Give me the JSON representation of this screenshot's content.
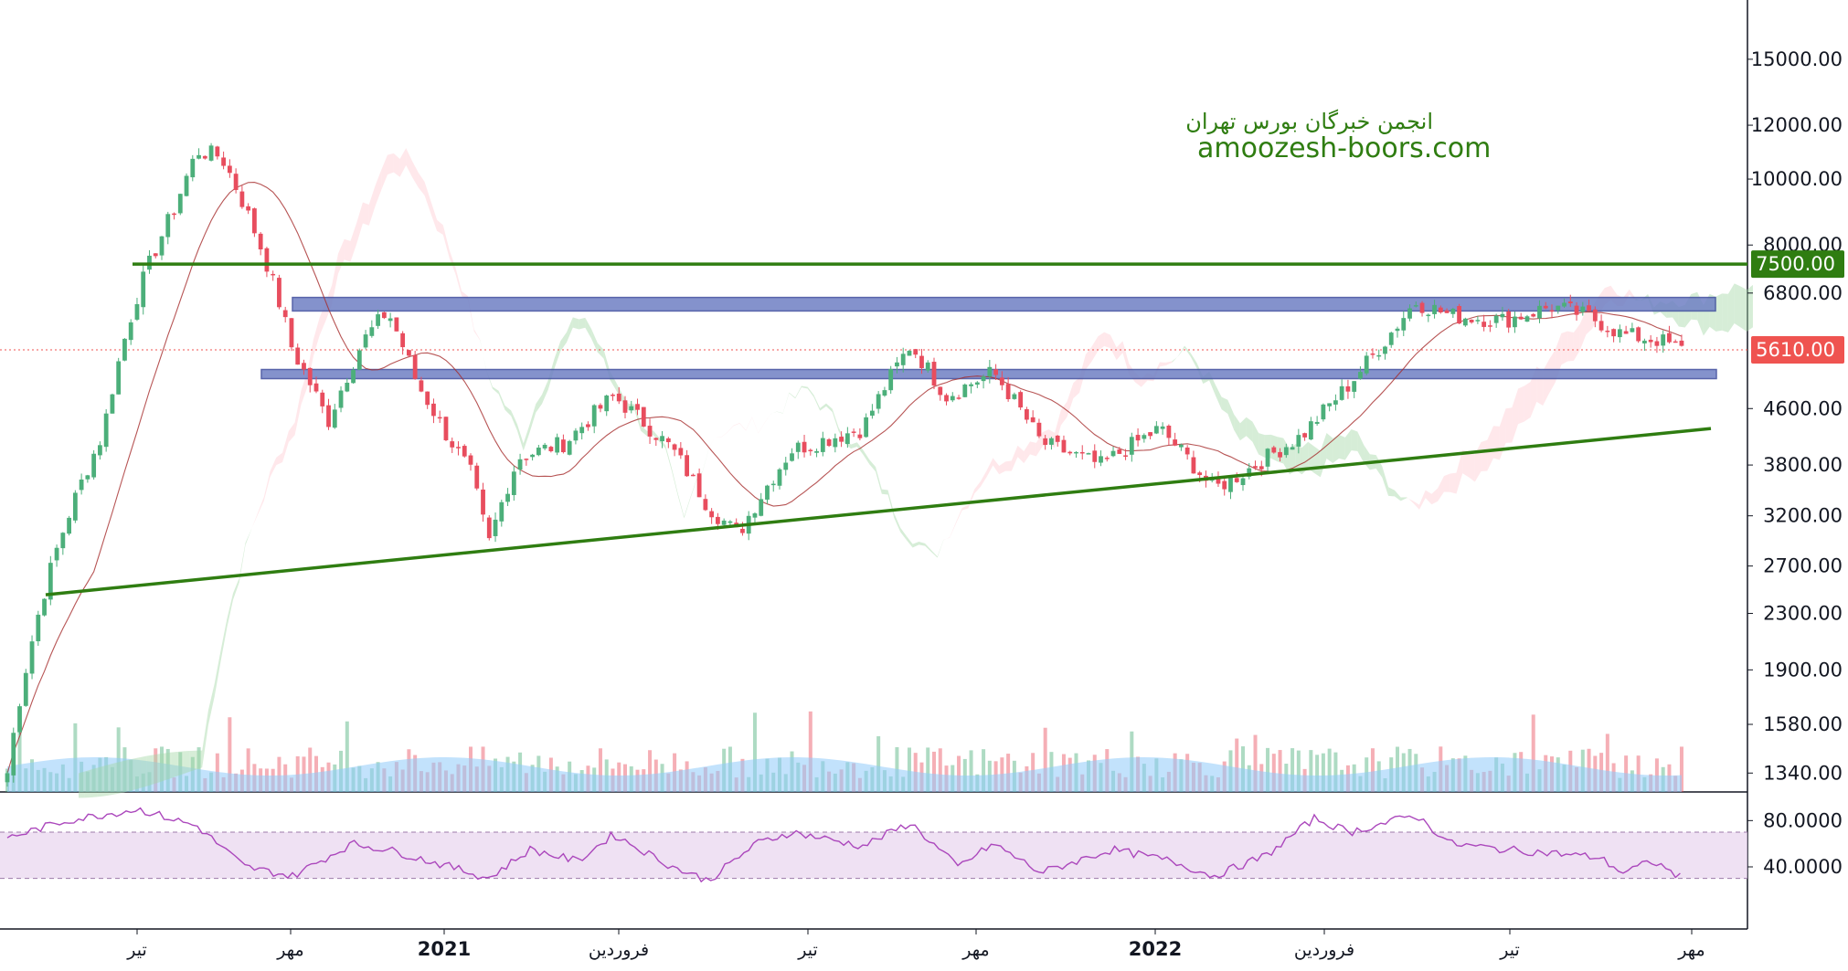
{
  "watermark": {
    "line1": "انجمن خبرگان بورس تهران",
    "line2": "amoozesh-boors.com"
  },
  "colors": {
    "up": "#26a69a",
    "up_body": "#4caf7a",
    "down": "#ef5350",
    "down_body": "#e84d5e",
    "trendline": "#2f7d11",
    "zone_fill": "#6f80c4",
    "zone_border": "#3b4a9c",
    "baseline": "#a52a2a",
    "cloud_green": "#a5d6a7",
    "cloud_red": "#ffcdd2",
    "rsi_line": "#ab47bc",
    "rsi_band": "#e8d4ee",
    "volume_ma": "#90caf9",
    "price_badge": "#ef5350",
    "level_badge": "#2f7d11"
  },
  "chart_data": {
    "type": "candlestick",
    "y_scale": "log",
    "y_ticks": [
      "15000.00",
      "12000.00",
      "10000.00",
      "8000.00",
      "6800.00",
      "4600.00",
      "3800.00",
      "3200.00",
      "2700.00",
      "2300.00",
      "1900.00",
      "1580.00",
      "1340.00"
    ],
    "x_ticks": [
      "تیر",
      "مهر",
      "2021",
      "فروردین",
      "تیر",
      "مهر",
      "2022",
      "فروردین",
      "تیر",
      "مهر"
    ],
    "price_anchors": {
      "x": [
        0,
        40,
        80,
        110,
        140,
        160,
        180,
        215,
        240,
        270,
        300,
        320,
        345,
        370,
        390,
        405,
        430,
        470,
        510,
        560,
        590,
        615,
        660,
        720,
        760,
        790,
        830,
        870,
        920,
        970,
        1015,
        1040,
        1090,
        1130,
        1160,
        1185,
        1215,
        1260,
        1300,
        1330,
        1360,
        1390,
        1410
      ],
      "close": [
        1340,
        2800,
        4200,
        6800,
        9000,
        11000,
        10800,
        7800,
        5600,
        4400,
        5800,
        6400,
        5000,
        4200,
        3700,
        2900,
        3900,
        4100,
        4800,
        4000,
        3300,
        3000,
        4000,
        4300,
        5700,
        4800,
        5200,
        4100,
        3800,
        4300,
        3500,
        3700,
        4200,
        5000,
        5800,
        6600,
        6300,
        6200,
        6500,
        6300,
        5900,
        5800,
        5610
      ]
    },
    "levels": [
      {
        "label": "7500.00",
        "value": 7500
      },
      {
        "label": "5610.00",
        "value": 5610
      }
    ],
    "zones": [
      {
        "low": 6400,
        "high": 6700
      },
      {
        "low": 5100,
        "high": 5250
      }
    ],
    "trendline": {
      "from": {
        "x": 40,
        "value": 2450
      },
      "to": {
        "x": 1450,
        "value": 4300
      }
    },
    "rsi": {
      "y_ticks": [
        "80.0000",
        "40.0000"
      ],
      "band": [
        30,
        70
      ],
      "anchors_x": [
        0,
        50,
        110,
        160,
        200,
        240,
        290,
        320,
        380,
        405,
        440,
        480,
        510,
        560,
        590,
        630,
        660,
        720,
        760,
        800,
        830,
        870,
        930,
        980,
        1015,
        1060,
        1100,
        1130,
        1160,
        1185,
        1215,
        1260,
        1300,
        1340,
        1360,
        1385,
        1410
      ],
      "anchors_v": [
        65,
        80,
        90,
        75,
        40,
        32,
        60,
        55,
        38,
        30,
        55,
        45,
        68,
        40,
        28,
        60,
        70,
        58,
        78,
        40,
        60,
        35,
        55,
        45,
        32,
        50,
        82,
        70,
        78,
        85,
        60,
        55,
        52,
        48,
        35,
        45,
        30
      ]
    }
  }
}
